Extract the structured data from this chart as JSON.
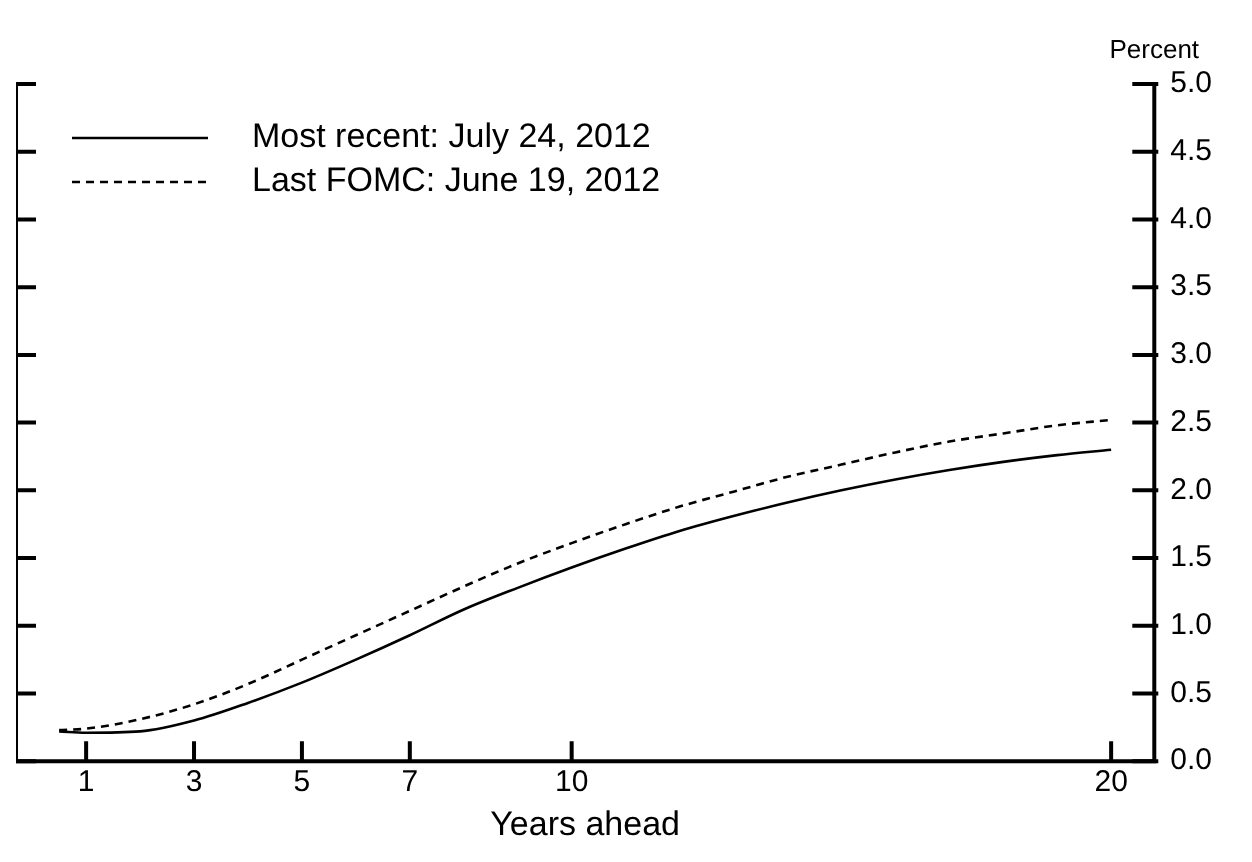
{
  "chart_data": {
    "type": "line",
    "xlabel": "Years ahead",
    "ylabel": "Percent",
    "x": [
      0.5,
      1,
      2,
      3,
      4,
      5,
      6,
      7,
      8,
      9,
      10,
      11,
      12,
      13,
      14,
      15,
      16,
      17,
      18,
      19,
      20
    ],
    "series": [
      {
        "name": "Most recent: July 24, 2012",
        "color": "#000000",
        "line_style": "solid",
        "values": [
          0.22,
          0.21,
          0.22,
          0.3,
          0.43,
          0.58,
          0.75,
          0.93,
          1.12,
          1.28,
          1.43,
          1.57,
          1.7,
          1.81,
          1.91,
          2.0,
          2.08,
          2.15,
          2.21,
          2.26,
          2.3
        ]
      },
      {
        "name": "Last FOMC: June 19, 2012",
        "color": "#000000",
        "line_style": "dashed",
        "values": [
          0.23,
          0.24,
          0.31,
          0.42,
          0.57,
          0.75,
          0.93,
          1.11,
          1.29,
          1.46,
          1.61,
          1.75,
          1.88,
          1.99,
          2.1,
          2.19,
          2.28,
          2.36,
          2.42,
          2.48,
          2.52
        ]
      }
    ],
    "xlim": [
      -0.3,
      20.8
    ],
    "xticks": [
      1,
      3,
      5,
      7,
      10,
      20
    ],
    "ylim": [
      0,
      5
    ],
    "yticks": [
      {
        "value": 0,
        "label": "0.0"
      },
      0.5,
      {
        "value": 1,
        "label": "1.0"
      },
      1.5,
      {
        "value": 2,
        "label": "2.0"
      },
      2.5,
      {
        "value": 3,
        "label": "3.0"
      },
      3.5,
      {
        "value": 4,
        "label": "4.0"
      },
      4.5,
      {
        "value": 5,
        "label": "5.0"
      }
    ],
    "legend": "top left",
    "grid": false,
    "marker": "none"
  }
}
